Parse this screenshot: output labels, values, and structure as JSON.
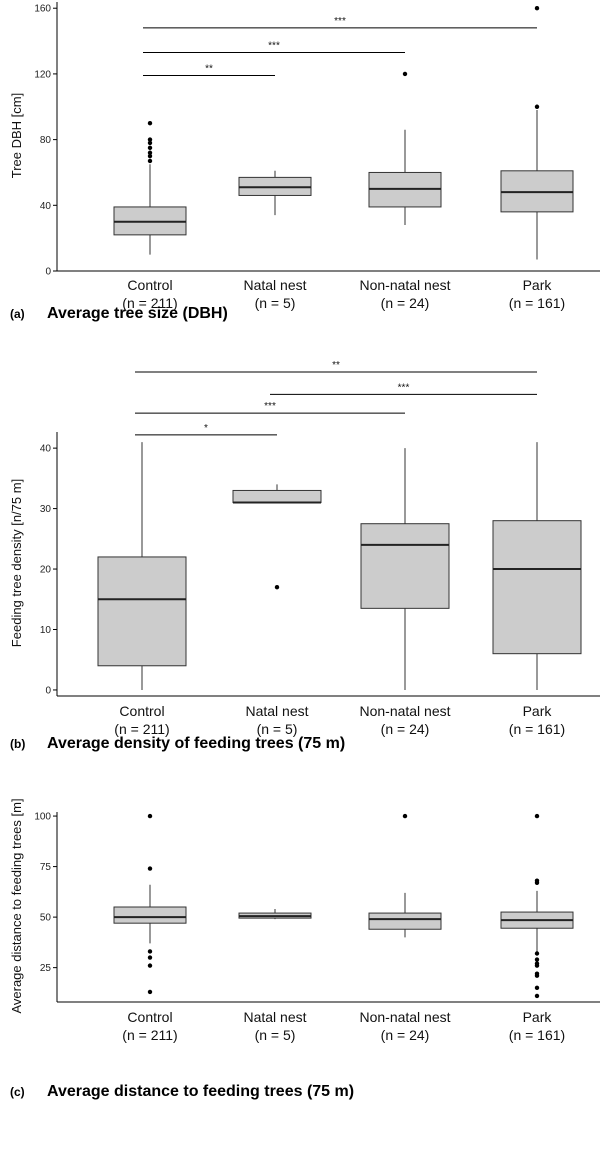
{
  "chart_data": [
    {
      "type": "box",
      "panel_tag": "(a)",
      "title": "Average tree size (DBH)",
      "ylabel": "Tree DBH [cm]",
      "ylim": [
        0,
        165
      ],
      "yticks": [
        0,
        40,
        80,
        120,
        160
      ],
      "categories": [
        {
          "name": "Control",
          "n": "(n = 211)"
        },
        {
          "name": "Natal nest",
          "n": "(n = 5)"
        },
        {
          "name": "Non-natal nest",
          "n": "(n = 24)"
        },
        {
          "name": "Park",
          "n": "(n = 161)"
        }
      ],
      "boxes": [
        {
          "min": 10,
          "q1": 22,
          "median": 30,
          "q3": 39,
          "max": 65,
          "outliers": [
            67,
            70,
            72,
            75,
            78,
            80,
            90
          ]
        },
        {
          "min": 34,
          "q1": 46,
          "median": 51,
          "q3": 57,
          "max": 61,
          "outliers": []
        },
        {
          "min": 28,
          "q1": 39,
          "median": 50,
          "q3": 60,
          "max": 86,
          "outliers": [
            120
          ]
        },
        {
          "min": 7,
          "q1": 36,
          "median": 48,
          "q3": 61,
          "max": 98,
          "outliers": [
            100,
            160
          ]
        }
      ],
      "significance": [
        {
          "from": 0,
          "to": 1,
          "y": 119,
          "label": "**"
        },
        {
          "from": 0,
          "to": 2,
          "y": 133,
          "label": "***"
        },
        {
          "from": 0,
          "to": 3,
          "y": 148,
          "label": "***"
        }
      ]
    },
    {
      "type": "box",
      "panel_tag": "(b)",
      "title": "Average density of feeding trees (75 m)",
      "ylabel": "Feeding tree density [n/75 m]",
      "ylim": [
        -1,
        43
      ],
      "yticks": [
        0,
        10,
        20,
        30,
        40
      ],
      "categories": [
        {
          "name": "Control",
          "n": "(n = 211)"
        },
        {
          "name": "Natal nest",
          "n": "(n = 5)"
        },
        {
          "name": "Non-natal nest",
          "n": "(n = 24)"
        },
        {
          "name": "Park",
          "n": "(n = 161)"
        }
      ],
      "boxes": [
        {
          "min": 0,
          "q1": 4,
          "median": 15,
          "q3": 22,
          "max": 41,
          "outliers": []
        },
        {
          "min": 31,
          "q1": 31,
          "median": 31,
          "q3": 33,
          "max": 34,
          "outliers": [
            17
          ]
        },
        {
          "min": 0,
          "q1": 13.5,
          "median": 24,
          "q3": 27.5,
          "max": 40,
          "outliers": []
        },
        {
          "min": 0,
          "q1": 6,
          "median": 20,
          "q3": 28,
          "max": 41,
          "outliers": []
        }
      ],
      "significance": [
        {
          "from": 0,
          "to": 1,
          "y": 42.2,
          "label": "*"
        },
        {
          "from": 0,
          "to": 2,
          "y": 45.8,
          "label": "***"
        },
        {
          "from": 1,
          "to": 3,
          "y": 48.9,
          "label": "***"
        },
        {
          "from": 0,
          "to": 3,
          "y": 52.6,
          "label": "**"
        }
      ]
    },
    {
      "type": "box",
      "panel_tag": "(c)",
      "title": "Average distance to feeding trees (75 m)",
      "ylabel": "Average distance to feeding trees [m]",
      "ylim": [
        8,
        103
      ],
      "yticks": [
        25,
        50,
        75,
        100
      ],
      "categories": [
        {
          "name": "Control",
          "n": "(n = 211)"
        },
        {
          "name": "Natal nest",
          "n": "(n = 5)"
        },
        {
          "name": "Non-natal nest",
          "n": "(n = 24)"
        },
        {
          "name": "Park",
          "n": "(n = 161)"
        }
      ],
      "boxes": [
        {
          "min": 37,
          "q1": 47,
          "median": 50,
          "q3": 55,
          "max": 66,
          "outliers": [
            74,
            100,
            33,
            30,
            26,
            13
          ]
        },
        {
          "min": 49,
          "q1": 49.5,
          "median": 50.5,
          "q3": 52,
          "max": 54,
          "outliers": []
        },
        {
          "min": 40,
          "q1": 44,
          "median": 49,
          "q3": 52,
          "max": 62,
          "outliers": [
            100
          ]
        },
        {
          "min": 33,
          "q1": 44.5,
          "median": 48.5,
          "q3": 52.5,
          "max": 63,
          "outliers": [
            100,
            67,
            68,
            32,
            29,
            27,
            26,
            22,
            21,
            15,
            11
          ]
        }
      ],
      "significance": []
    }
  ]
}
